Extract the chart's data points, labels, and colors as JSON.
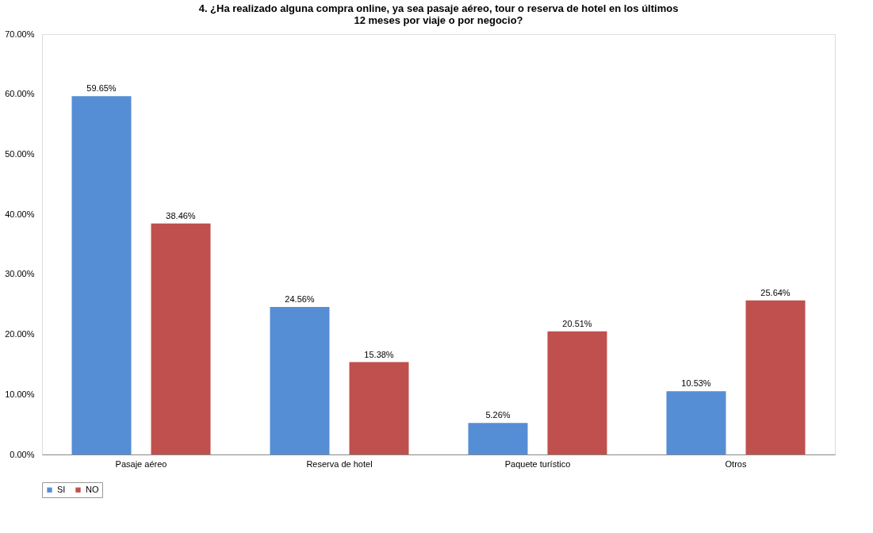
{
  "chart_data": {
    "type": "bar",
    "title": "4. ¿Ha realizado alguna compra online, ya sea pasaje aéreo, tour o reserva de hotel en los últimos\n12 meses por viaje o por negocio?",
    "categories": [
      "Pasaje aéreo",
      "Reserva de hotel",
      "Paquete turístico",
      "Otros"
    ],
    "series": [
      {
        "name": "SI",
        "color": "#558ed5",
        "values": [
          59.65,
          24.56,
          5.26,
          10.53
        ],
        "value_labels": [
          "59.65%",
          "24.56%",
          "5.26%",
          "10.53%"
        ]
      },
      {
        "name": "NO",
        "color": "#c0504d",
        "values": [
          38.46,
          15.38,
          20.51,
          25.64
        ],
        "value_labels": [
          "38.46%",
          "15.38%",
          "20.51%",
          "25.64%"
        ]
      }
    ],
    "ylim": [
      0,
      70
    ],
    "yticks": [
      {
        "value": 0,
        "label": "0.00%"
      },
      {
        "value": 10,
        "label": "10.00%"
      },
      {
        "value": 20,
        "label": "20.00%"
      },
      {
        "value": 30,
        "label": "30.00%"
      },
      {
        "value": 40,
        "label": "40.00%"
      },
      {
        "value": 50,
        "label": "50.00%"
      },
      {
        "value": 60,
        "label": "60.00%"
      },
      {
        "value": 70,
        "label": "70.00%"
      }
    ],
    "grid": false,
    "legend": "bottom"
  }
}
